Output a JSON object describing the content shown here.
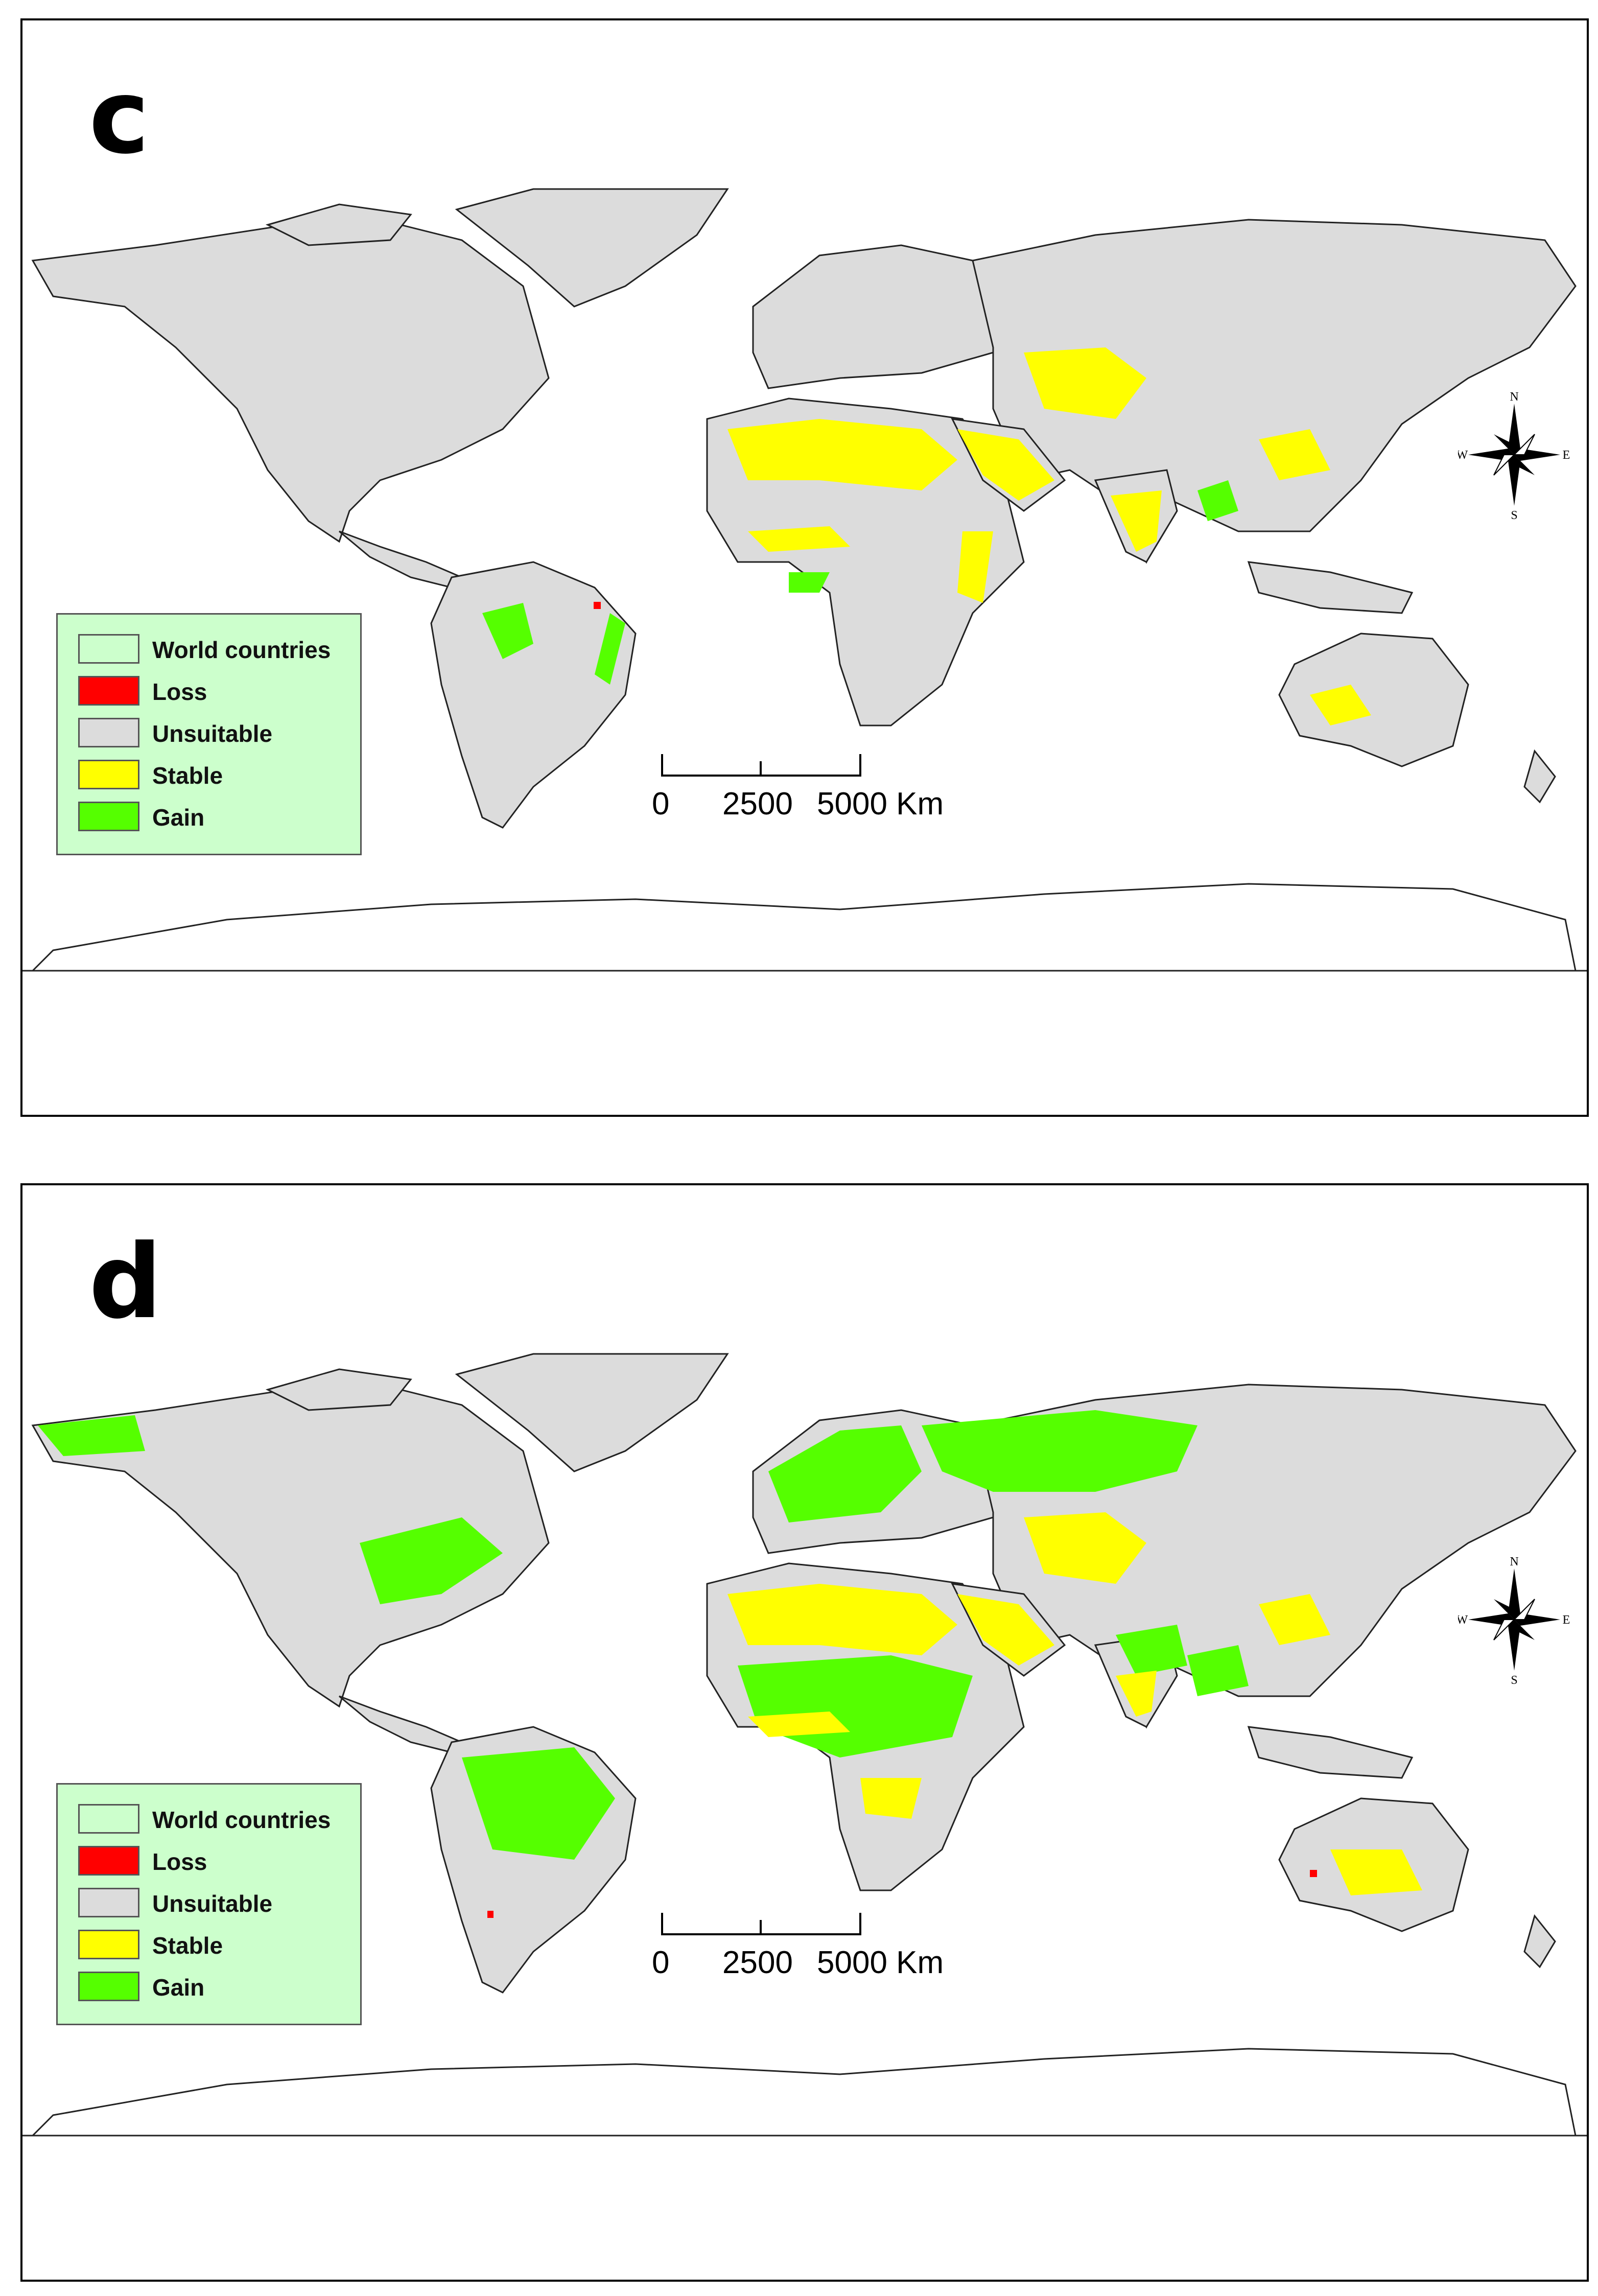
{
  "panels": [
    {
      "label": "c",
      "legend": [
        {
          "label": "World countries",
          "color": "#ccffcc"
        },
        {
          "label": "Loss",
          "color": "#ff0000"
        },
        {
          "label": "Unsuitable",
          "color": "#dcdcdc"
        },
        {
          "label": "Stable",
          "color": "#ffff00"
        },
        {
          "label": "Gain",
          "color": "#55ff00"
        }
      ],
      "scale": {
        "ticks": [
          "0",
          "2500",
          "5000 Km"
        ]
      },
      "compass": {
        "n": "N",
        "s": "S",
        "e": "E",
        "w": "W"
      }
    },
    {
      "label": "d",
      "legend": [
        {
          "label": "World countries",
          "color": "#ccffcc"
        },
        {
          "label": "Loss",
          "color": "#ff0000"
        },
        {
          "label": "Unsuitable",
          "color": "#dcdcdc"
        },
        {
          "label": "Stable",
          "color": "#ffff00"
        },
        {
          "label": "Gain",
          "color": "#55ff00"
        }
      ],
      "scale": {
        "ticks": [
          "0",
          "2500",
          "5000 Km"
        ]
      },
      "compass": {
        "n": "N",
        "s": "S",
        "e": "E",
        "w": "W"
      }
    }
  ],
  "colors": {
    "unsuitable": "#dcdcdc",
    "stable": "#ffff00",
    "gain": "#55ff00",
    "loss": "#ff0000",
    "border": "#222222"
  }
}
